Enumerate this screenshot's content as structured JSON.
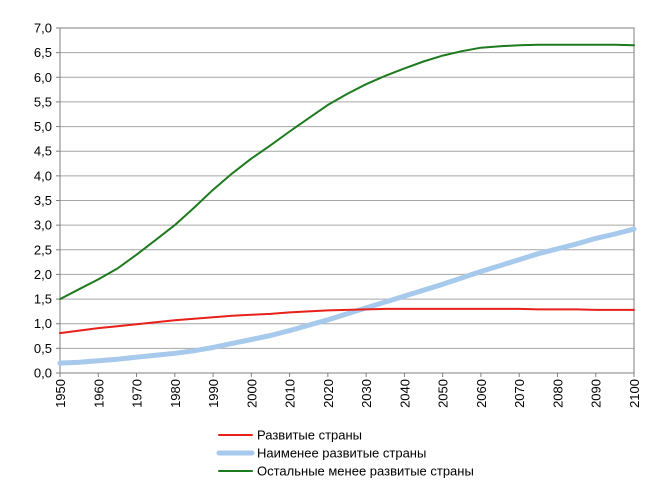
{
  "chart_data": {
    "type": "line",
    "title": "",
    "xlabel": "",
    "ylabel": "",
    "xlim": [
      1950,
      2100
    ],
    "ylim": [
      0,
      7
    ],
    "x_ticks": [
      "1950",
      "1960",
      "1970",
      "1980",
      "1990",
      "2000",
      "2010",
      "2020",
      "2030",
      "2040",
      "2050",
      "2060",
      "2070",
      "2080",
      "2090",
      "2100"
    ],
    "y_ticks": [
      "0,0",
      "0,5",
      "1,0",
      "1,5",
      "2,0",
      "2,5",
      "3,0",
      "3,5",
      "4,0",
      "4,5",
      "5,0",
      "5,5",
      "6,0",
      "6,5",
      "7,0"
    ],
    "grid": "horizontal",
    "legend_position": "bottom",
    "series": [
      {
        "name": "Развитые страны",
        "color": "#e8201a",
        "x": [
          1950,
          1955,
          1960,
          1965,
          1970,
          1975,
          1980,
          1985,
          1990,
          1995,
          2000,
          2005,
          2010,
          2015,
          2020,
          2025,
          2030,
          2035,
          2040,
          2045,
          2050,
          2055,
          2060,
          2065,
          2070,
          2075,
          2080,
          2085,
          2090,
          2095,
          2100
        ],
        "y": [
          0.81,
          0.86,
          0.91,
          0.95,
          0.99,
          1.03,
          1.07,
          1.1,
          1.13,
          1.16,
          1.18,
          1.2,
          1.23,
          1.25,
          1.27,
          1.28,
          1.29,
          1.3,
          1.3,
          1.3,
          1.3,
          1.3,
          1.3,
          1.3,
          1.3,
          1.29,
          1.29,
          1.29,
          1.28,
          1.28,
          1.28
        ]
      },
      {
        "name": "Наименее развитые страны",
        "color": "#a6c9ec",
        "x": [
          1950,
          1955,
          1960,
          1965,
          1970,
          1975,
          1980,
          1985,
          1990,
          1995,
          2000,
          2005,
          2010,
          2015,
          2020,
          2025,
          2030,
          2035,
          2040,
          2045,
          2050,
          2055,
          2060,
          2065,
          2070,
          2075,
          2080,
          2085,
          2090,
          2095,
          2100
        ],
        "y": [
          0.2,
          0.22,
          0.25,
          0.28,
          0.32,
          0.36,
          0.4,
          0.45,
          0.52,
          0.6,
          0.68,
          0.76,
          0.86,
          0.97,
          1.08,
          1.2,
          1.32,
          1.44,
          1.56,
          1.68,
          1.8,
          1.93,
          2.06,
          2.18,
          2.3,
          2.42,
          2.52,
          2.62,
          2.73,
          2.82,
          2.92
        ]
      },
      {
        "name": "Остальные менее развитые страны",
        "color": "#1e7a1e",
        "x": [
          1950,
          1955,
          1960,
          1965,
          1970,
          1975,
          1980,
          1985,
          1990,
          1995,
          2000,
          2005,
          2010,
          2015,
          2020,
          2025,
          2030,
          2035,
          2040,
          2045,
          2050,
          2055,
          2060,
          2065,
          2070,
          2075,
          2080,
          2085,
          2090,
          2095,
          2100
        ],
        "y": [
          1.5,
          1.7,
          1.9,
          2.12,
          2.4,
          2.7,
          3.0,
          3.35,
          3.72,
          4.05,
          4.35,
          4.62,
          4.9,
          5.17,
          5.44,
          5.66,
          5.86,
          6.03,
          6.18,
          6.32,
          6.44,
          6.53,
          6.6,
          6.63,
          6.65,
          6.66,
          6.66,
          6.66,
          6.66,
          6.66,
          6.65
        ]
      }
    ]
  }
}
